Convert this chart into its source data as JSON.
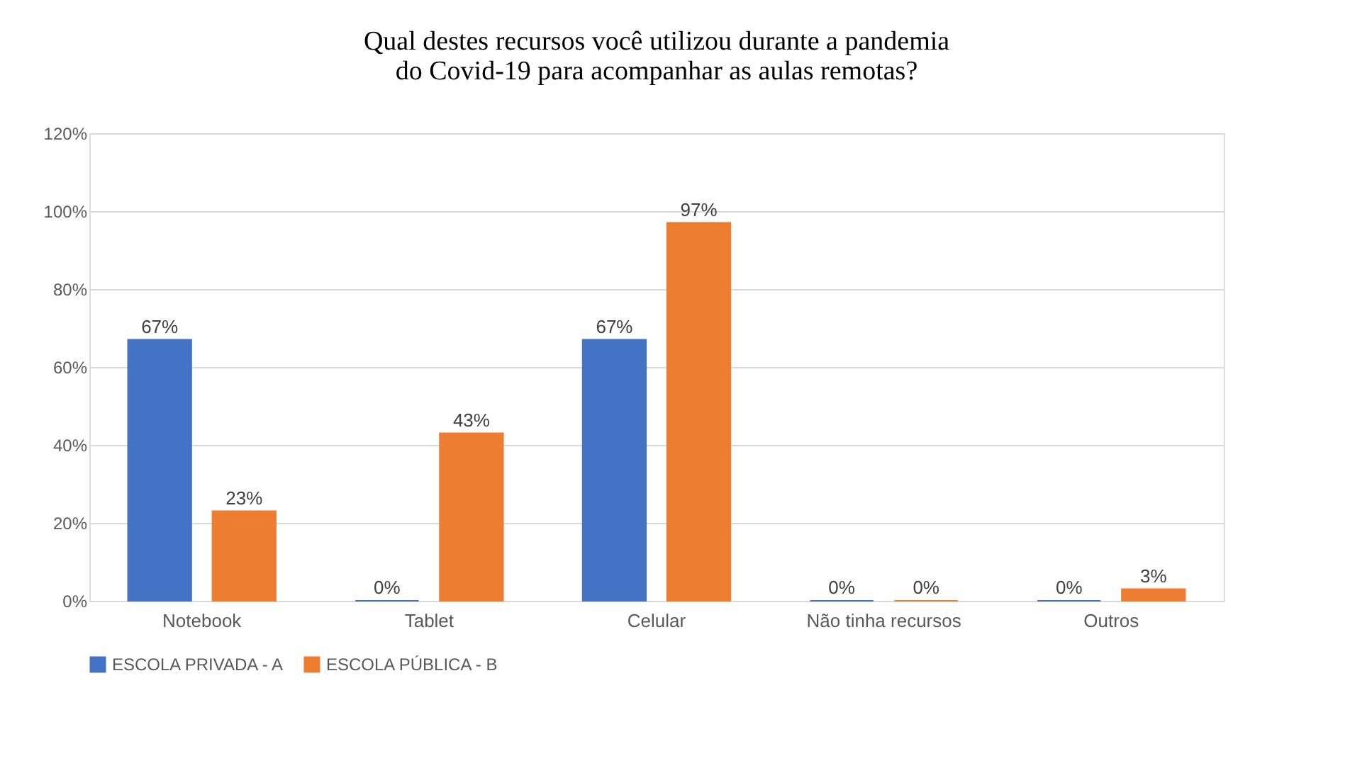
{
  "chart_data": {
    "type": "bar",
    "title": "Qual destes recursos você utilizou durante a pandemia do Covid-19 para acompanhar as aulas remotas?",
    "categories": [
      "Notebook",
      "Tablet",
      "Celular",
      "Não tinha recursos",
      "Outros"
    ],
    "series": [
      {
        "name": "ESCOLA PRIVADA - A",
        "color": "#4472c4",
        "values": [
          67,
          0,
          67,
          0,
          0
        ],
        "value_labels": [
          "67%",
          "0%",
          "67%",
          "0%",
          "0%"
        ]
      },
      {
        "name": "ESCOLA PÚBLICA - B",
        "color": "#ed7d31",
        "values": [
          23,
          43,
          97,
          0,
          3
        ],
        "value_labels": [
          "23%",
          "43%",
          "97%",
          "0%",
          "3%"
        ]
      }
    ],
    "ylim": [
      0,
      120
    ],
    "yticks": [
      {
        "value": 0,
        "label": "0%"
      },
      {
        "value": 20,
        "label": "20%"
      },
      {
        "value": 40,
        "label": "40%"
      },
      {
        "value": 60,
        "label": "60%"
      },
      {
        "value": 80,
        "label": "80%"
      },
      {
        "value": 100,
        "label": "100%"
      },
      {
        "value": 120,
        "label": "120%"
      }
    ],
    "grid": "y",
    "legend": "bottom"
  }
}
